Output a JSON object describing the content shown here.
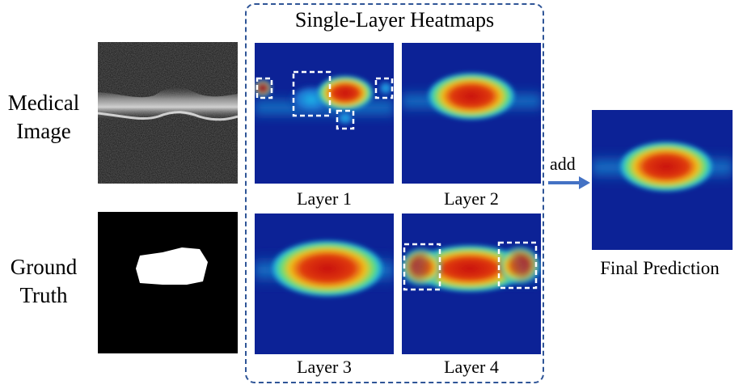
{
  "row_labels": {
    "medical_image": [
      "Medical",
      "Image"
    ],
    "ground_truth": [
      "Ground",
      "Truth"
    ]
  },
  "heatmaps_box": {
    "title": "Single-Layer Heatmaps",
    "layers": [
      {
        "caption": "Layer 1"
      },
      {
        "caption": "Layer 2"
      },
      {
        "caption": "Layer 3"
      },
      {
        "caption": "Layer 4"
      }
    ]
  },
  "arrow": {
    "label": "add"
  },
  "final": {
    "caption": "Final Prediction"
  },
  "colors": {
    "frame": "#2f5597",
    "arrow": "#4472c4",
    "heat_low": "#0a1a8c",
    "heat_mid": "#00c8ff",
    "heat_high": "#d01010"
  }
}
